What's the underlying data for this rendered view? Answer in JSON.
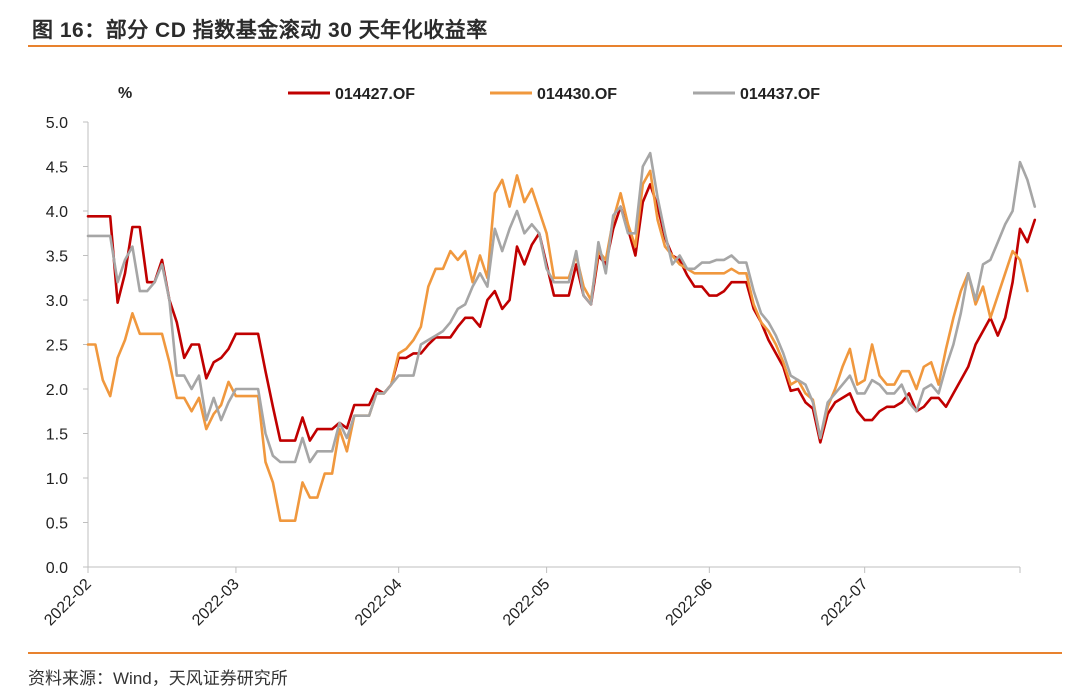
{
  "figure": {
    "title": "图 16：部分 CD 指数基金滚动 30 天年化收益率",
    "source": "资料来源：Wind，天风证券研究所"
  },
  "chart_data": {
    "type": "line",
    "ylabel": "%",
    "ylim": [
      0,
      5
    ],
    "yticks": [
      "0.0",
      "0.5",
      "1.0",
      "1.5",
      "2.0",
      "2.5",
      "3.0",
      "3.5",
      "4.0",
      "4.5",
      "5.0"
    ],
    "x_range": [
      0,
      126
    ],
    "xticks": [
      {
        "label": "2022-02",
        "pos": 0
      },
      {
        "label": "2022-03",
        "pos": 20
      },
      {
        "label": "2022-04",
        "pos": 42
      },
      {
        "label": "2022-05",
        "pos": 62
      },
      {
        "label": "2022-06",
        "pos": 84
      },
      {
        "label": "2022-07",
        "pos": 105
      }
    ],
    "legend_position": "top",
    "series": [
      {
        "name": "014427.OF",
        "color": "#c00000",
        "values": [
          3.94,
          3.94,
          3.94,
          3.94,
          2.97,
          3.3,
          3.82,
          3.82,
          3.2,
          3.2,
          3.45,
          3.0,
          2.75,
          2.35,
          2.5,
          2.5,
          2.12,
          2.3,
          2.35,
          2.45,
          2.62,
          2.62,
          2.62,
          2.62,
          2.2,
          1.8,
          1.42,
          1.42,
          1.42,
          1.68,
          1.42,
          1.55,
          1.55,
          1.55,
          1.62,
          1.56,
          1.82,
          1.82,
          1.82,
          2.0,
          1.95,
          2.05,
          2.35,
          2.35,
          2.4,
          2.4,
          2.5,
          2.58,
          2.58,
          2.58,
          2.7,
          2.8,
          2.8,
          2.7,
          3.0,
          3.1,
          2.9,
          3.0,
          3.6,
          3.4,
          3.62,
          3.75,
          3.4,
          3.05,
          3.05,
          3.05,
          3.4,
          3.05,
          2.95,
          3.5,
          3.4,
          3.8,
          4.05,
          3.8,
          3.5,
          4.1,
          4.3,
          4.05,
          3.7,
          3.5,
          3.45,
          3.28,
          3.15,
          3.15,
          3.05,
          3.05,
          3.1,
          3.2,
          3.2,
          3.2,
          2.9,
          2.75,
          2.55,
          2.4,
          2.25,
          1.98,
          2.0,
          1.85,
          1.78,
          1.4,
          1.72,
          1.85,
          1.9,
          1.95,
          1.75,
          1.65,
          1.65,
          1.75,
          1.8,
          1.8,
          1.85,
          1.95,
          1.75,
          1.8,
          1.9,
          1.9,
          1.8,
          1.95,
          2.1,
          2.25,
          2.5,
          2.65,
          2.8,
          2.6,
          2.8,
          3.2,
          3.8,
          3.65,
          3.9
        ]
      },
      {
        "name": "014430.OF",
        "color": "#f0983e",
        "values": [
          2.5,
          2.5,
          2.1,
          1.92,
          2.35,
          2.55,
          2.85,
          2.62,
          2.62,
          2.62,
          2.62,
          2.3,
          1.9,
          1.9,
          1.75,
          1.9,
          1.55,
          1.72,
          1.82,
          2.08,
          1.92,
          1.92,
          1.92,
          1.92,
          1.18,
          0.95,
          0.52,
          0.52,
          0.52,
          0.95,
          0.78,
          0.78,
          1.05,
          1.05,
          1.55,
          1.3,
          1.7,
          1.7,
          1.7,
          1.95,
          1.95,
          2.05,
          2.4,
          2.45,
          2.55,
          2.7,
          3.15,
          3.35,
          3.35,
          3.55,
          3.45,
          3.55,
          3.2,
          3.5,
          3.25,
          4.2,
          4.35,
          4.05,
          4.4,
          4.1,
          4.25,
          4.0,
          3.75,
          3.25,
          3.25,
          3.25,
          3.5,
          3.15,
          3.0,
          3.55,
          3.45,
          3.9,
          4.2,
          3.85,
          3.6,
          4.3,
          4.45,
          3.9,
          3.6,
          3.5,
          3.4,
          3.35,
          3.3,
          3.3,
          3.3,
          3.3,
          3.3,
          3.35,
          3.3,
          3.3,
          2.95,
          2.75,
          2.65,
          2.5,
          2.3,
          2.05,
          2.1,
          1.95,
          1.88,
          1.45,
          1.8,
          2.0,
          2.25,
          2.45,
          2.05,
          2.1,
          2.5,
          2.15,
          2.05,
          2.05,
          2.2,
          2.2,
          2.0,
          2.25,
          2.3,
          2.05,
          2.45,
          2.8,
          3.1,
          3.3,
          2.95,
          3.15,
          2.8,
          3.05,
          3.3,
          3.55,
          3.45,
          3.1
        ]
      },
      {
        "name": "014437.OF",
        "color": "#a6a6a6",
        "values": [
          3.72,
          3.72,
          3.72,
          3.72,
          3.2,
          3.45,
          3.6,
          3.1,
          3.1,
          3.2,
          3.4,
          3.0,
          2.15,
          2.15,
          2.0,
          2.15,
          1.65,
          1.9,
          1.65,
          1.85,
          2.0,
          2.0,
          2.0,
          2.0,
          1.5,
          1.25,
          1.18,
          1.18,
          1.18,
          1.45,
          1.18,
          1.3,
          1.3,
          1.3,
          1.62,
          1.45,
          1.7,
          1.7,
          1.7,
          1.95,
          1.95,
          2.05,
          2.15,
          2.15,
          2.15,
          2.5,
          2.55,
          2.6,
          2.65,
          2.75,
          2.9,
          2.95,
          3.15,
          3.3,
          3.15,
          3.8,
          3.55,
          3.8,
          4.0,
          3.75,
          3.85,
          3.75,
          3.35,
          3.2,
          3.2,
          3.2,
          3.55,
          3.05,
          2.95,
          3.65,
          3.3,
          3.95,
          4.05,
          3.75,
          3.75,
          4.5,
          4.65,
          4.15,
          3.75,
          3.4,
          3.5,
          3.35,
          3.35,
          3.42,
          3.42,
          3.45,
          3.45,
          3.5,
          3.42,
          3.42,
          3.1,
          2.85,
          2.75,
          2.6,
          2.4,
          2.15,
          2.1,
          2.05,
          1.85,
          1.45,
          1.85,
          1.95,
          2.05,
          2.15,
          1.95,
          1.95,
          2.1,
          2.05,
          1.95,
          1.95,
          2.05,
          1.85,
          1.75,
          2.0,
          2.05,
          1.95,
          2.25,
          2.5,
          2.85,
          3.3,
          3.0,
          3.4,
          3.45,
          3.65,
          3.85,
          4.0,
          4.55,
          4.35,
          4.05
        ]
      }
    ]
  }
}
